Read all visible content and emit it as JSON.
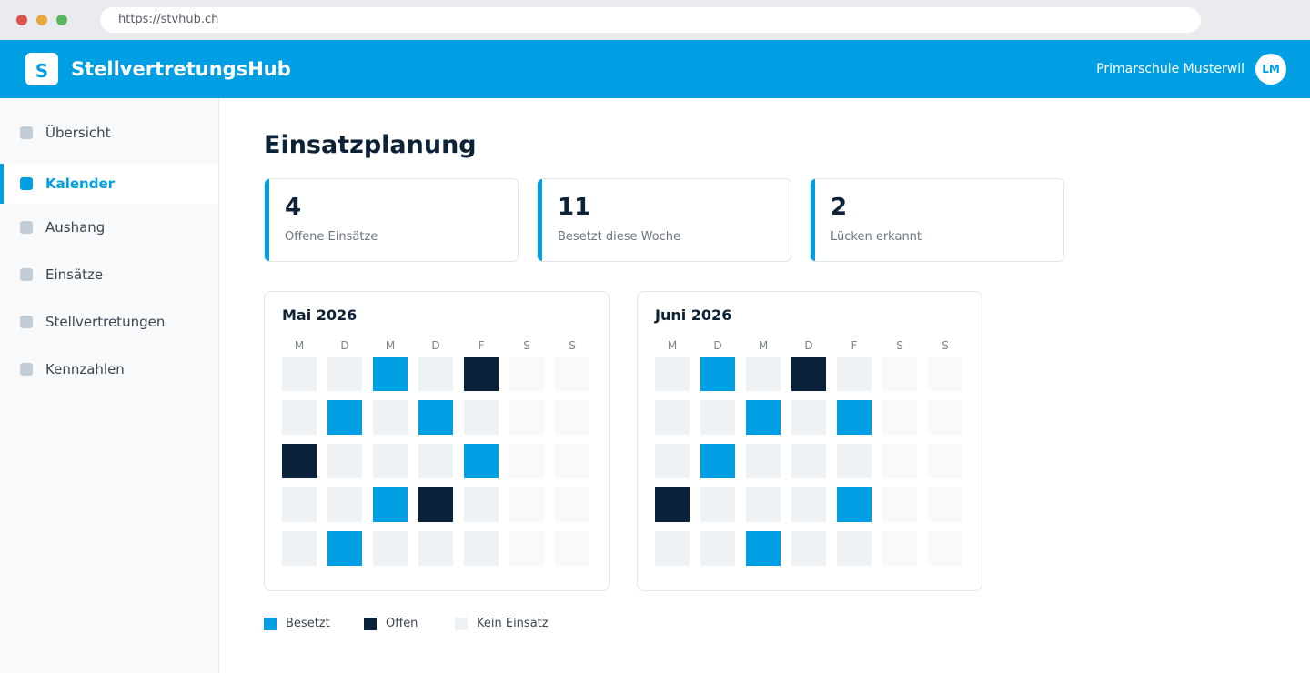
{
  "browser": {
    "url": "https://stvhub.ch"
  },
  "header": {
    "logo_letter": "S",
    "brand": "StellvertretungsHub",
    "school": "Primarschule Musterwil",
    "avatar_initials": "LM"
  },
  "sidebar": {
    "items": [
      {
        "label": "Übersicht",
        "active": false
      },
      {
        "label": "Kalender",
        "active": true
      },
      {
        "label": "Aushang",
        "active": false
      },
      {
        "label": "Einsätze",
        "active": false
      },
      {
        "label": "Stellvertretungen",
        "active": false
      },
      {
        "label": "Kennzahlen",
        "active": false
      }
    ]
  },
  "main": {
    "title": "Einsatzplanung",
    "stats": [
      {
        "value": "4",
        "label": "Offene Einsätze"
      },
      {
        "value": "11",
        "label": "Besetzt diese Woche"
      },
      {
        "value": "2",
        "label": "Lücken erkannt"
      }
    ],
    "calendars": [
      {
        "title": "Mai 2026",
        "weekdays": [
          "M",
          "D",
          "M",
          "D",
          "F",
          "S",
          "S"
        ],
        "rows": [
          [
            "empty",
            "empty",
            "booked",
            "empty",
            "open",
            "weekend",
            "weekend"
          ],
          [
            "empty",
            "booked",
            "empty",
            "booked",
            "empty",
            "weekend",
            "weekend"
          ],
          [
            "open",
            "empty",
            "empty",
            "empty",
            "booked",
            "weekend",
            "weekend"
          ],
          [
            "empty",
            "empty",
            "booked",
            "open",
            "empty",
            "weekend",
            "weekend"
          ],
          [
            "empty",
            "booked",
            "empty",
            "empty",
            "empty",
            "weekend",
            "weekend"
          ]
        ]
      },
      {
        "title": "Juni 2026",
        "weekdays": [
          "M",
          "D",
          "M",
          "D",
          "F",
          "S",
          "S"
        ],
        "rows": [
          [
            "empty",
            "booked",
            "empty",
            "open",
            "empty",
            "weekend",
            "weekend"
          ],
          [
            "empty",
            "empty",
            "booked",
            "empty",
            "booked",
            "weekend",
            "weekend"
          ],
          [
            "empty",
            "booked",
            "empty",
            "empty",
            "empty",
            "weekend",
            "weekend"
          ],
          [
            "open",
            "empty",
            "empty",
            "empty",
            "booked",
            "weekend",
            "weekend"
          ],
          [
            "empty",
            "empty",
            "booked",
            "empty",
            "empty",
            "weekend",
            "weekend"
          ]
        ]
      }
    ],
    "legend": [
      {
        "label": "Besetzt",
        "color": "#009fe3"
      },
      {
        "label": "Offen",
        "color": "#0b233a"
      },
      {
        "label": "Kein Einsatz",
        "color": "#eff2f5"
      }
    ]
  },
  "colors": {
    "accent": "#009fe3",
    "dark": "#0b233a"
  }
}
